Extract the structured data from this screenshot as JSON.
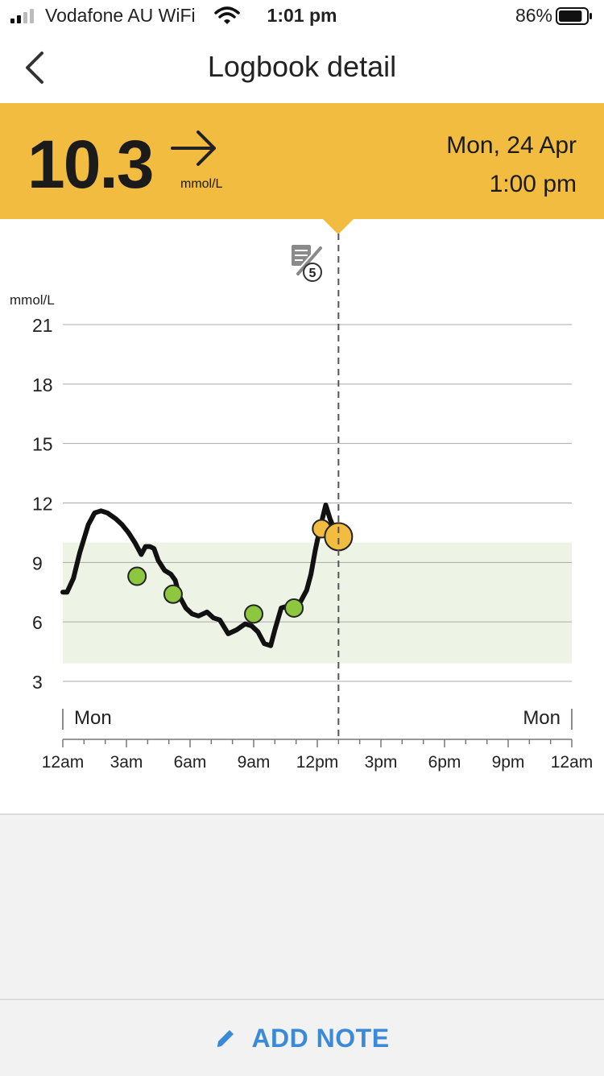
{
  "status_bar": {
    "carrier": "Vodafone AU WiFi",
    "time": "1:01 pm",
    "battery": "86%",
    "battery_level": 0.86,
    "icons": [
      "signal-icon",
      "wifi-icon",
      "battery-icon"
    ]
  },
  "nav": {
    "title": "Logbook detail",
    "back_icon": "chevron-left-icon"
  },
  "reading": {
    "value": "10.3",
    "unit": "mmol/L",
    "trend_icon": "arrow-right-icon",
    "date": "Mon, 24 Apr",
    "time": "1:00 pm",
    "color": "#f2bc40"
  },
  "insulin_marker": {
    "icon": "insulin-pen-note-icon",
    "count": "5"
  },
  "chart_data": {
    "type": "line",
    "ylabel": "mmol/L",
    "ylim": [
      1.5,
      21
    ],
    "yticks": [
      21,
      18,
      15,
      12,
      9,
      6,
      3
    ],
    "xlim": [
      0,
      24
    ],
    "xticks": [
      {
        "hour": 0,
        "label": "12am"
      },
      {
        "hour": 3,
        "label": "3am"
      },
      {
        "hour": 6,
        "label": "6am"
      },
      {
        "hour": 9,
        "label": "9am"
      },
      {
        "hour": 12,
        "label": "12pm"
      },
      {
        "hour": 15,
        "label": "3pm"
      },
      {
        "hour": 18,
        "label": "6pm"
      },
      {
        "hour": 21,
        "label": "9pm"
      },
      {
        "hour": 24,
        "label": "12am"
      }
    ],
    "day_labels": {
      "start": "Mon",
      "end": "Mon"
    },
    "target_range": [
      3.9,
      10.0
    ],
    "target_color": "#edf4e6",
    "line_color": "#111111",
    "cursor_hour": 13.0,
    "series": [
      {
        "x": [
          0,
          0.2,
          0.5,
          0.8,
          1.2,
          1.5,
          1.8,
          2.1,
          2.5,
          2.8,
          3.1,
          3.4,
          3.7,
          3.9,
          4.1,
          4.3,
          4.5,
          4.8,
          5.1,
          5.3,
          5.5,
          5.8,
          6.1,
          6.4,
          6.8,
          7.1,
          7.4,
          7.8,
          8.2,
          8.6,
          8.9,
          9.2,
          9.5,
          9.8,
          10.0,
          10.3,
          10.6,
          10.9,
          11.2,
          11.5,
          11.7,
          11.9,
          12.1,
          12.4,
          12.6,
          12.9
        ],
        "y": [
          7.5,
          7.5,
          8.2,
          9.5,
          10.9,
          11.5,
          11.6,
          11.5,
          11.2,
          10.9,
          10.5,
          10.0,
          9.4,
          9.8,
          9.8,
          9.7,
          9.1,
          8.6,
          8.4,
          8.1,
          7.3,
          6.7,
          6.4,
          6.3,
          6.5,
          6.2,
          6.1,
          5.4,
          5.6,
          5.9,
          5.8,
          5.5,
          4.9,
          4.8,
          5.6,
          6.7,
          6.8,
          6.7,
          7.0,
          7.6,
          8.4,
          9.6,
          10.6,
          11.9,
          11.2,
          10.4
        ]
      }
    ],
    "markers": [
      {
        "hour": 3.5,
        "value": 8.3,
        "color": "#8dc63f",
        "size": "small"
      },
      {
        "hour": 5.2,
        "value": 7.4,
        "color": "#8dc63f",
        "size": "small"
      },
      {
        "hour": 9.0,
        "value": 6.4,
        "color": "#8dc63f",
        "size": "small"
      },
      {
        "hour": 10.9,
        "value": 6.7,
        "color": "#8dc63f",
        "size": "small"
      },
      {
        "hour": 12.2,
        "value": 10.7,
        "color": "#f2bc40",
        "size": "small"
      },
      {
        "hour": 13.0,
        "value": 10.3,
        "color": "#f2bc40",
        "size": "large"
      }
    ]
  },
  "add_note": {
    "label": "ADD NOTE",
    "icon": "pencil-icon",
    "color": "#3a8ad8"
  }
}
